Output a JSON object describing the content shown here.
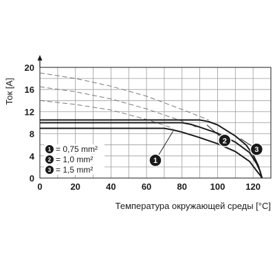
{
  "chart_data": {
    "type": "line",
    "xlabel": "Температура окружающей среды [°C]",
    "ylabel": "Ток [A]",
    "xlim": [
      0,
      130
    ],
    "ylim": [
      0,
      20
    ],
    "x_ticks": [
      "0",
      "20",
      "40",
      "60",
      "80",
      "100",
      "120"
    ],
    "y_ticks": [
      "0",
      "4",
      "8",
      "12",
      "16",
      "20"
    ],
    "grid": true,
    "series": [
      {
        "name": "1",
        "points": [
          [
            0,
            9
          ],
          [
            70,
            9
          ],
          [
            75,
            8.7
          ],
          [
            80,
            8.3
          ],
          [
            90,
            7.3
          ],
          [
            100,
            6.2
          ],
          [
            110,
            4.8
          ],
          [
            118,
            3
          ],
          [
            122,
            1.3
          ],
          [
            124,
            0.5
          ],
          [
            125,
            0
          ]
        ]
      },
      {
        "name": "2",
        "points": [
          [
            0,
            10
          ],
          [
            80,
            10
          ],
          [
            85,
            9.7
          ],
          [
            90,
            9.2
          ],
          [
            100,
            8.1
          ],
          [
            110,
            6.5
          ],
          [
            118,
            4.6
          ],
          [
            122,
            2.6
          ],
          [
            124,
            1.2
          ],
          [
            125,
            0
          ]
        ]
      },
      {
        "name": "3",
        "points": [
          [
            0,
            10.5
          ],
          [
            90,
            10.5
          ],
          [
            95,
            10.2
          ],
          [
            100,
            9.6
          ],
          [
            110,
            7.6
          ],
          [
            116,
            6
          ],
          [
            120,
            4.2
          ],
          [
            123,
            2.2
          ],
          [
            125,
            0
          ]
        ]
      }
    ],
    "dashed_curves": [
      {
        "points": [
          [
            0,
            14
          ],
          [
            20,
            13.3
          ],
          [
            40,
            12.3
          ],
          [
            60,
            10.6
          ],
          [
            75,
            9
          ]
        ]
      },
      {
        "points": [
          [
            0,
            16.5
          ],
          [
            20,
            15.6
          ],
          [
            40,
            14.3
          ],
          [
            60,
            12.5
          ],
          [
            80,
            10.3
          ],
          [
            88,
            9.2
          ]
        ]
      },
      {
        "points": [
          [
            0,
            19
          ],
          [
            20,
            18
          ],
          [
            40,
            16.6
          ],
          [
            60,
            14.8
          ],
          [
            80,
            12.4
          ],
          [
            95,
            10.5
          ]
        ]
      }
    ],
    "badge_callouts": [
      {
        "label": "1",
        "at": [
          65,
          3.2
        ],
        "target": [
          75,
          8.5
        ]
      },
      {
        "label": "2",
        "at": [
          104,
          6.8
        ],
        "target": [
          94,
          9.6
        ]
      },
      {
        "label": "3",
        "at": [
          122,
          5.2
        ],
        "target": [
          113,
          7.1
        ]
      }
    ],
    "legend": [
      {
        "badge": "1",
        "text": "= 0,75 mm²"
      },
      {
        "badge": "2",
        "text": "= 1,0 mm²"
      },
      {
        "badge": "3",
        "text": "= 1,5 mm²"
      }
    ]
  }
}
